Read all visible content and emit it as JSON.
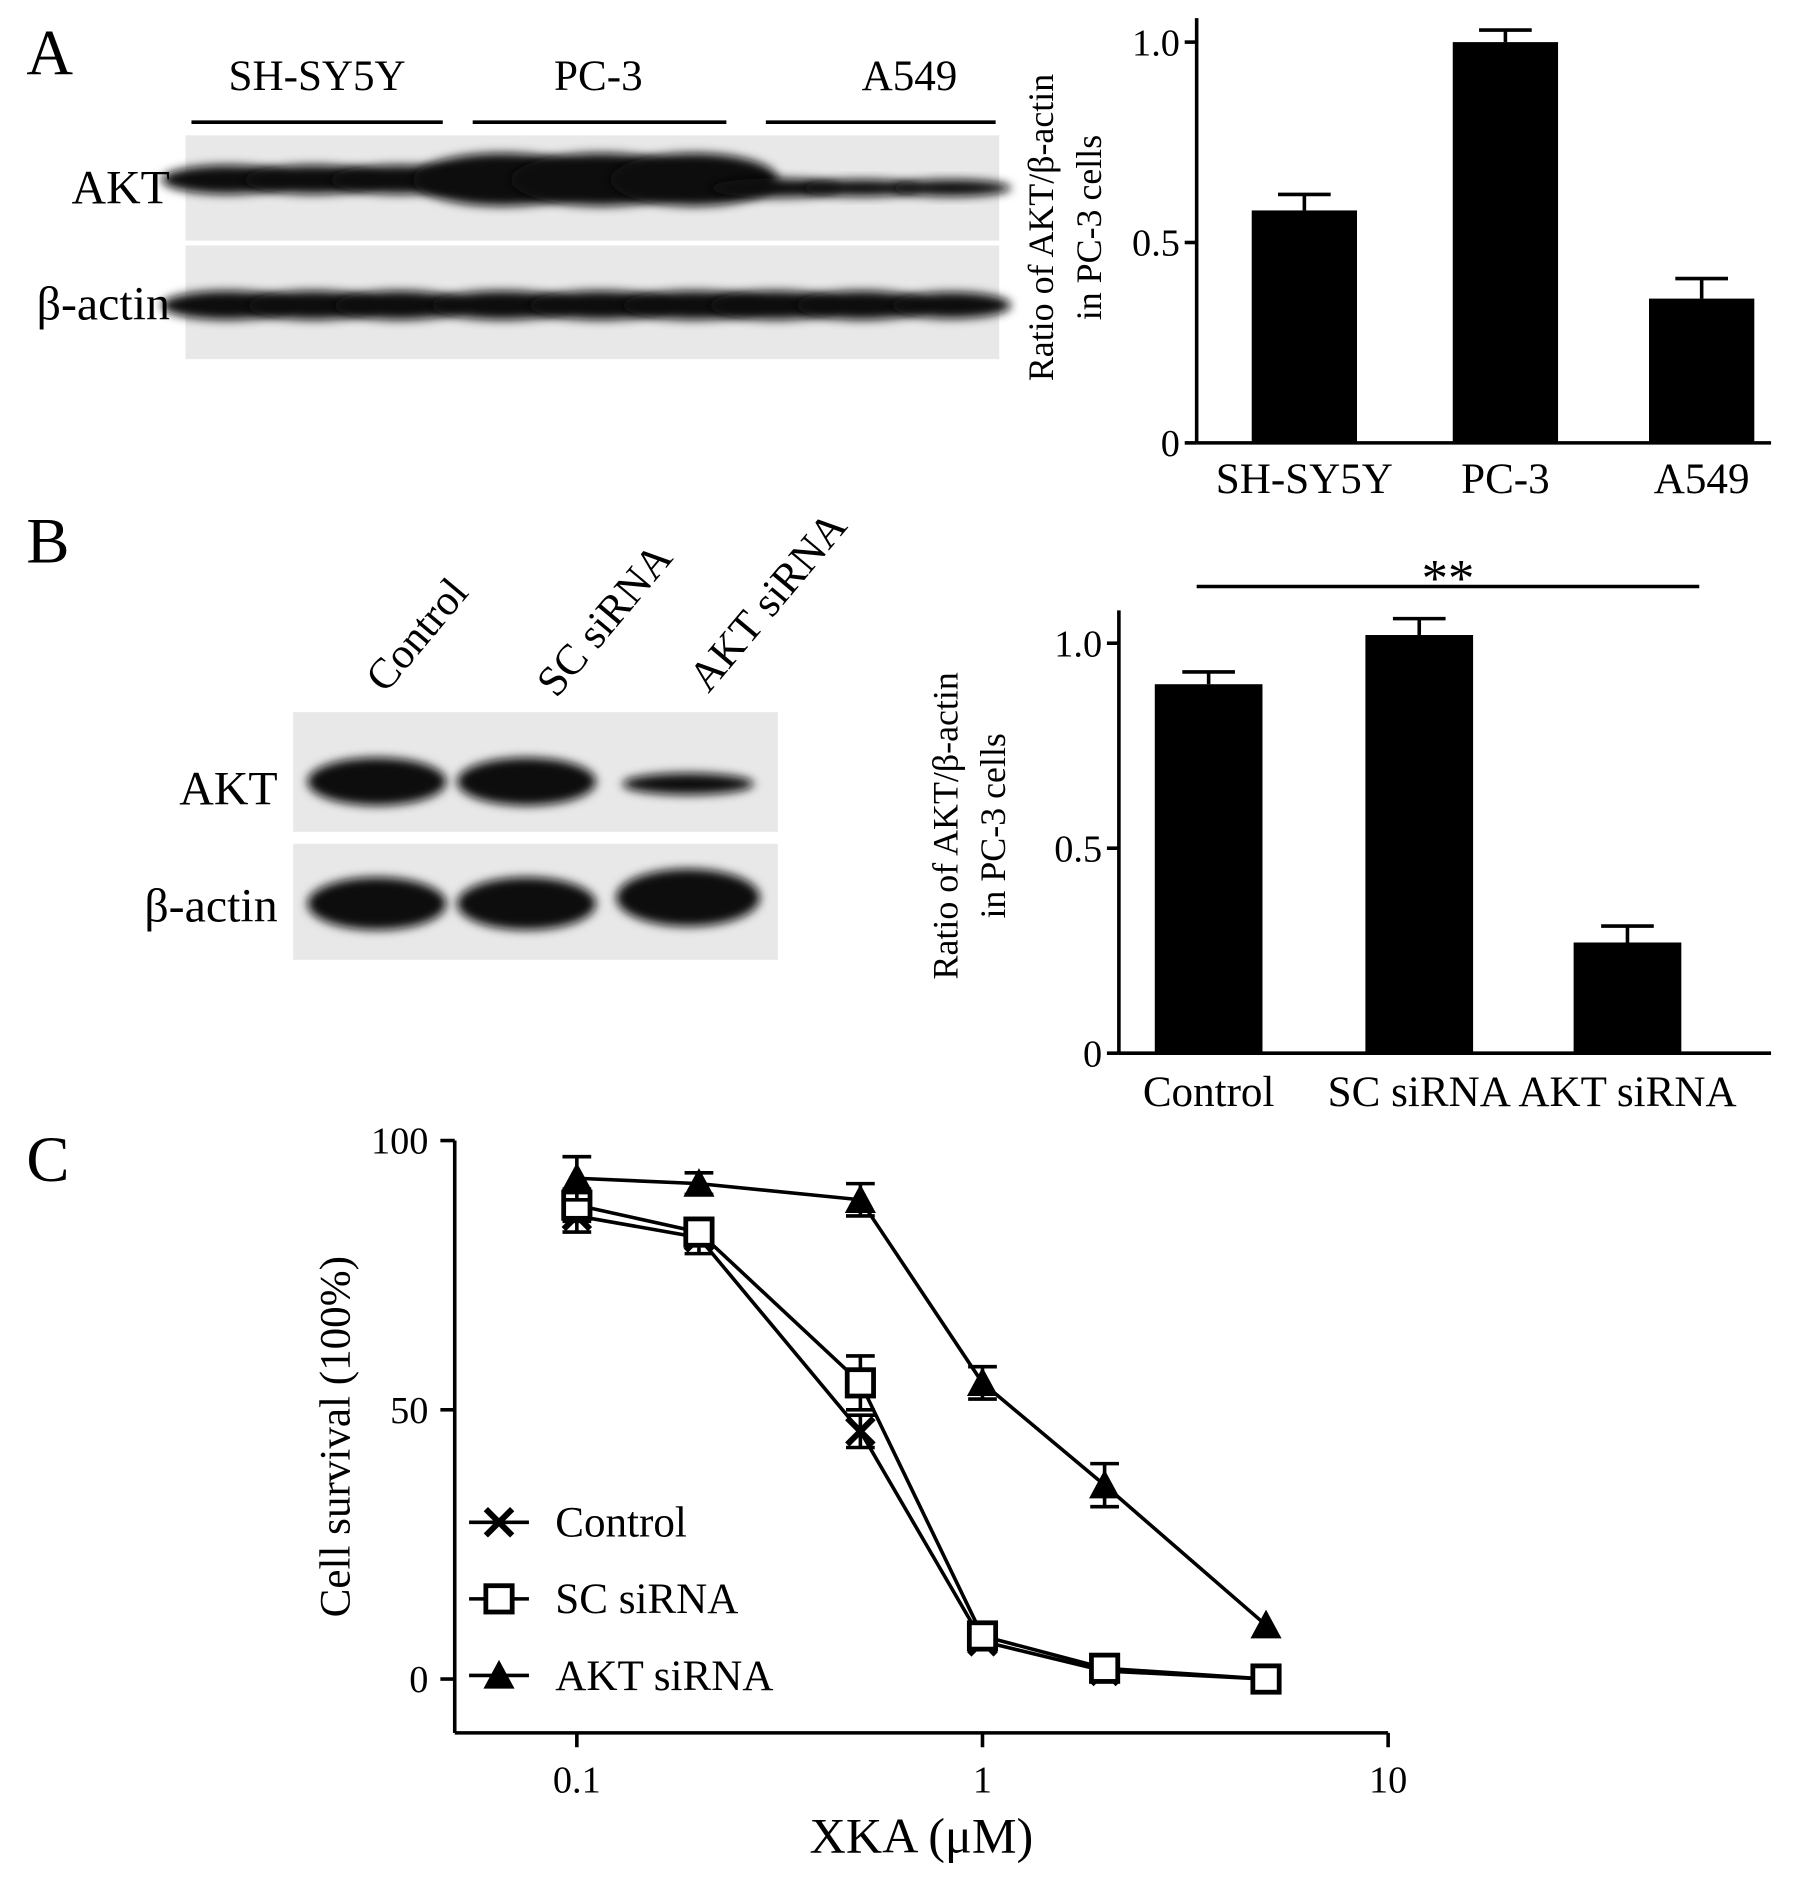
{
  "blots": [
    {
      "lanes": [
        "SH-SY5Y",
        "PC-3",
        "A549"
      ],
      "rows": [
        "AKT",
        "β-actin"
      ]
    },
    {
      "lanes": [
        "Control",
        "SC siRNA",
        "AKT siRNA"
      ],
      "rows": [
        "AKT",
        "β-actin"
      ]
    }
  ],
  "chart_data": [
    {
      "type": "bar",
      "panel": "A",
      "y_label": [
        "Ratio of AKT/β-actin",
        "in PC-3 cells"
      ],
      "categories": [
        "SH-SY5Y",
        "PC-3",
        "A549"
      ],
      "values": [
        0.58,
        1.0,
        0.36
      ],
      "errors": [
        0.04,
        0.03,
        0.05
      ],
      "color": "#000000",
      "ylim": [
        0,
        1.06
      ],
      "yticks": [
        0,
        0.5,
        {
          "value": 1,
          "label": "1.0"
        }
      ]
    },
    {
      "type": "bar",
      "panel": "B",
      "y_label": [
        "Ratio of AKT/β-actin",
        "in PC-3 cells"
      ],
      "categories": [
        "Control",
        "SC siRNA",
        "AKT siRNA"
      ],
      "values": [
        0.9,
        1.02,
        0.27
      ],
      "errors": [
        0.03,
        0.04,
        0.04
      ],
      "color": "#000000",
      "annotation": "**",
      "ylim": [
        0,
        1.08
      ],
      "yticks": [
        0,
        0.5,
        {
          "value": 1,
          "label": "1.0"
        }
      ]
    },
    {
      "type": "line",
      "panel": "C",
      "x_label": "XKA (μM)",
      "y_label": "Cell survival (100%)",
      "log_x": true,
      "x": [
        0.1,
        0.2,
        0.5,
        1,
        2,
        5
      ],
      "series": [
        {
          "name": "Control",
          "color": "#000000",
          "marker": "x",
          "values": [
            86,
            82,
            46,
            7,
            1.5,
            0
          ],
          "errors": [
            3,
            3,
            3,
            1,
            1,
            0
          ]
        },
        {
          "name": "SC siRNA",
          "color": "#000000",
          "marker": "square",
          "values": [
            88,
            83,
            55,
            8,
            2,
            0
          ],
          "errors": [
            3,
            2,
            5,
            1,
            1,
            0
          ]
        },
        {
          "name": "AKT siRNA",
          "color": "#000000",
          "marker": "triangle",
          "values": [
            93,
            92,
            89,
            55,
            36,
            10
          ],
          "errors": [
            4,
            2,
            3,
            3,
            4,
            0
          ]
        }
      ],
      "xlim": [
        0.05,
        10
      ],
      "ylim": [
        -10,
        100
      ],
      "xticks": [
        0.1,
        1,
        10
      ],
      "yticks": [
        0,
        50,
        100
      ]
    }
  ]
}
